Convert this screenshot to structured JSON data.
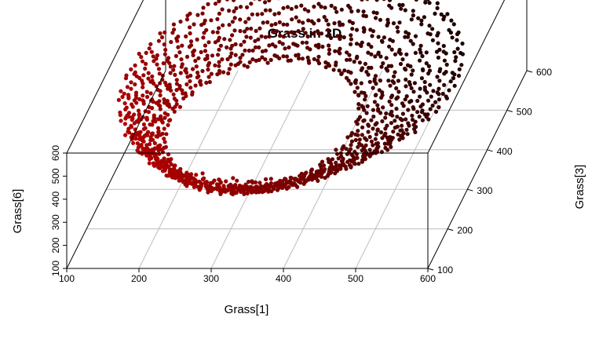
{
  "chart_data": {
    "type": "scatter",
    "title": "Grass in 3D",
    "xlabel": "Grass[1]",
    "ylabel": "Grass[3]",
    "zlabel": "Grass[6]",
    "xlim": [
      100,
      600
    ],
    "ylim": [
      100,
      600
    ],
    "zlim": [
      100,
      600
    ],
    "x_ticks": [
      "100",
      "200",
      "300",
      "400",
      "500",
      "600"
    ],
    "y_ticks": [
      "100",
      "200",
      "300",
      "400",
      "500",
      "600"
    ],
    "z_ticks": [
      "100",
      "200",
      "300",
      "400",
      "500",
      "600"
    ],
    "grid": true,
    "color_low": "#ff0000",
    "color_high": "#000000",
    "loops": [
      {
        "cx": 335,
        "cy": 375,
        "rx": 225,
        "ry": 215,
        "z0": 370,
        "z1": 520
      },
      {
        "cx": 330,
        "cy": 370,
        "rx": 210,
        "ry": 200,
        "z0": 340,
        "z1": 490
      },
      {
        "cx": 325,
        "cy": 360,
        "rx": 195,
        "ry": 185,
        "z0": 315,
        "z1": 470
      },
      {
        "cx": 320,
        "cy": 355,
        "rx": 180,
        "ry": 170,
        "z0": 295,
        "z1": 445
      },
      {
        "cx": 315,
        "cy": 350,
        "rx": 165,
        "ry": 160,
        "z0": 280,
        "z1": 420
      },
      {
        "cx": 310,
        "cy": 345,
        "rx": 150,
        "ry": 145,
        "z0": 265,
        "z1": 400
      },
      {
        "cx": 305,
        "cy": 340,
        "rx": 135,
        "ry": 130,
        "z0": 250,
        "z1": 380
      }
    ]
  }
}
